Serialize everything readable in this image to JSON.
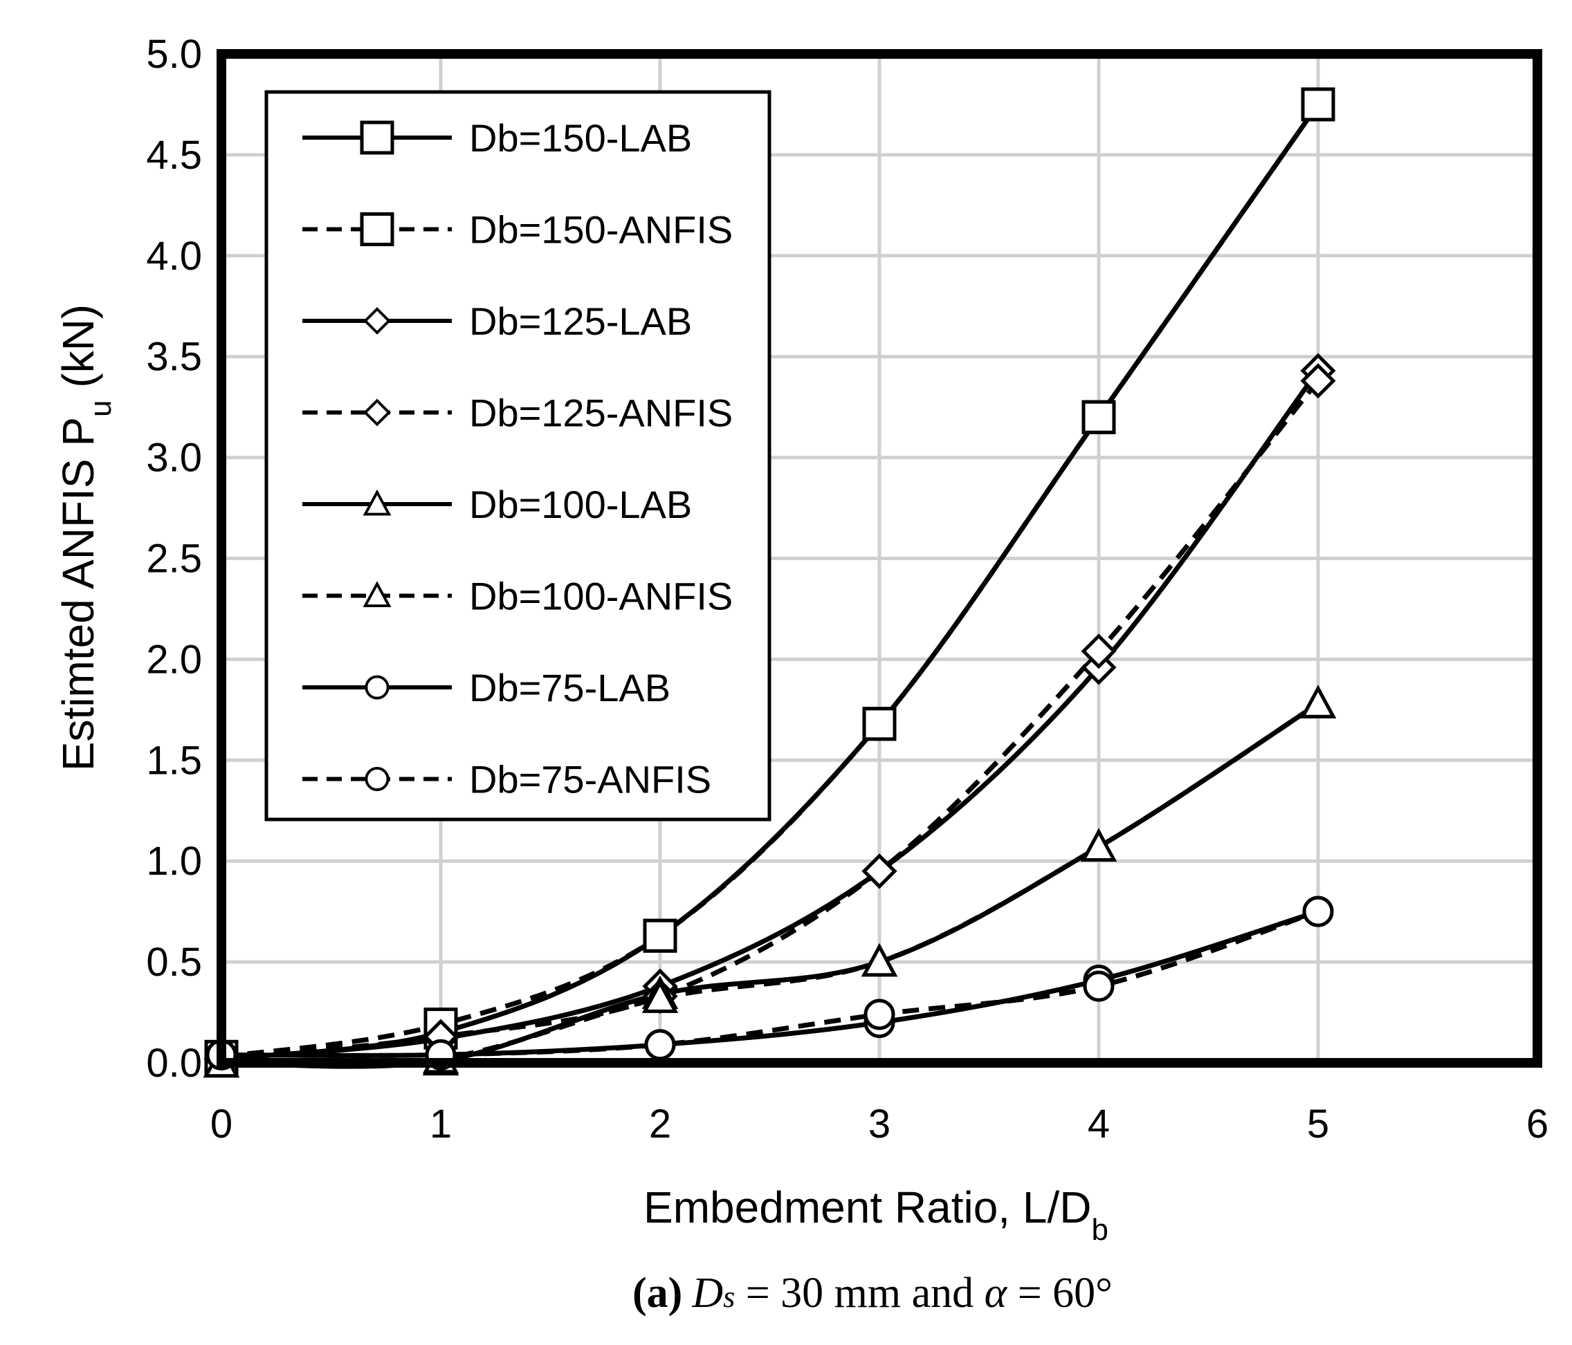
{
  "chart_data": {
    "type": "line",
    "title": "",
    "xlabel": "Embedment Ratio, L/D",
    "xlabel_sub": "b",
    "ylabel": "Estimted ANFIS  P",
    "ylabel_sub": "u",
    "ylabel_units": " (kN)",
    "xlim": [
      0,
      6
    ],
    "ylim": [
      0,
      5
    ],
    "xticks": [
      0,
      1,
      2,
      3,
      4,
      5,
      6
    ],
    "xtick_labels": [
      "0",
      "1",
      "2",
      "3",
      "4",
      "5",
      "6"
    ],
    "yticks": [
      0,
      0.5,
      1,
      1.5,
      2,
      2.5,
      3,
      3.5,
      4,
      4.5,
      5
    ],
    "ytick_labels": [
      "0.0",
      "0.5",
      "1.0",
      "1.5",
      "2.0",
      "2.5",
      "3.0",
      "3.5",
      "4.0",
      "4.5",
      "5.0"
    ],
    "grid": true,
    "legend_position": "top-left",
    "series": [
      {
        "name": "Db=150-LAB",
        "marker": "square",
        "linestyle": "solid",
        "x": [
          0,
          1,
          2,
          3,
          4,
          5
        ],
        "y": [
          0.02,
          0.15,
          0.63,
          1.68,
          3.2,
          4.75
        ]
      },
      {
        "name": "Db=150-ANFIS",
        "marker": "square",
        "linestyle": "dashed",
        "x": [
          0,
          1,
          2,
          3,
          4,
          5
        ],
        "y": [
          0.03,
          0.19,
          0.63,
          1.68,
          3.2,
          4.75
        ]
      },
      {
        "name": "Db=125-LAB",
        "marker": "diamond",
        "linestyle": "solid",
        "x": [
          0,
          1,
          2,
          3,
          4,
          5
        ],
        "y": [
          0.02,
          0.12,
          0.38,
          0.95,
          1.96,
          3.43
        ]
      },
      {
        "name": "Db=125-ANFIS",
        "marker": "diamond",
        "linestyle": "dashed",
        "x": [
          0,
          1,
          2,
          3,
          4,
          5
        ],
        "y": [
          0.02,
          0.13,
          0.33,
          0.95,
          2.04,
          3.38
        ]
      },
      {
        "name": "Db=100-LAB",
        "marker": "triangle",
        "linestyle": "solid",
        "x": [
          0,
          1,
          2,
          3,
          4,
          5
        ],
        "y": [
          0.0,
          0.01,
          0.34,
          0.5,
          1.07,
          1.78
        ]
      },
      {
        "name": "Db=100-ANFIS",
        "marker": "triangle",
        "linestyle": "dashed",
        "x": [
          0,
          1,
          2,
          3,
          4,
          5
        ],
        "y": [
          0.0,
          0.02,
          0.32,
          0.5,
          1.07,
          1.78
        ]
      },
      {
        "name": "Db=75-LAB",
        "marker": "circle",
        "linestyle": "solid",
        "x": [
          0,
          1,
          2,
          3,
          4,
          5
        ],
        "y": [
          0.04,
          0.04,
          0.09,
          0.2,
          0.41,
          0.75
        ]
      },
      {
        "name": "Db=75-ANFIS",
        "marker": "circle",
        "linestyle": "dashed",
        "x": [
          0,
          1,
          2,
          3,
          4,
          5
        ],
        "y": [
          0.04,
          0.04,
          0.09,
          0.24,
          0.38,
          0.75
        ]
      }
    ],
    "caption": {
      "label": "(a)",
      "symbol_D": "D",
      "symbol_D_sub": "s",
      "eq1": " = 30 mm and ",
      "symbol_alpha": "α",
      "eq2": " = 60°"
    }
  }
}
